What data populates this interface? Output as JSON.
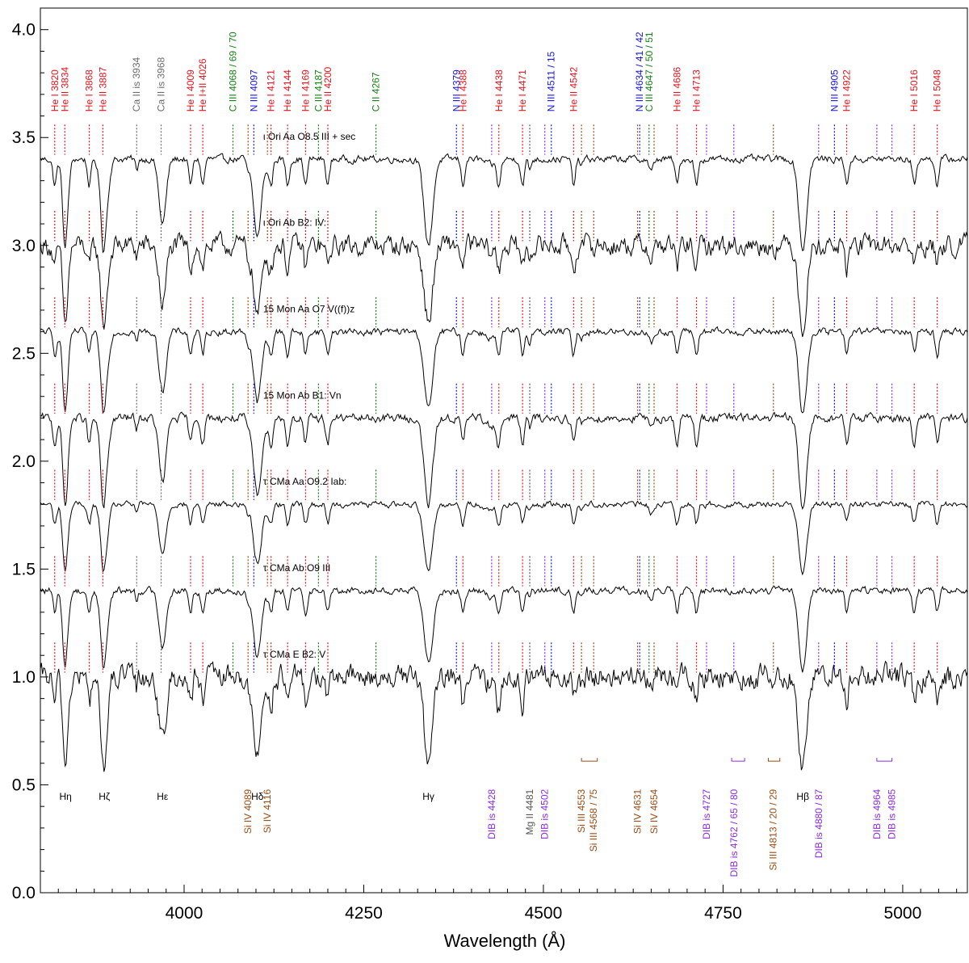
{
  "chart_data": {
    "type": "line",
    "title": "",
    "xlabel": "Wavelength (Å)",
    "ylabel": "",
    "xlim": [
      3800,
      5090
    ],
    "ylim": [
      0.0,
      4.1
    ],
    "x_ticks": [
      {
        "value": 4000,
        "label": "4000"
      },
      {
        "value": 4250,
        "label": "4250"
      },
      {
        "value": 4500,
        "label": "4500"
      },
      {
        "value": 4750,
        "label": "4750"
      },
      {
        "value": 5000,
        "label": "5000"
      }
    ],
    "y_ticks": [
      {
        "value": 0.0,
        "label": "0.0"
      },
      {
        "value": 0.5,
        "label": "0.5"
      },
      {
        "value": 1.0,
        "label": "1.0"
      },
      {
        "value": 1.5,
        "label": "1.5"
      },
      {
        "value": 2.0,
        "label": "2.0"
      },
      {
        "value": 2.5,
        "label": "2.5"
      },
      {
        "value": 3.0,
        "label": "3.0"
      },
      {
        "value": 3.5,
        "label": "3.5"
      },
      {
        "value": 4.0,
        "label": "4.0"
      }
    ],
    "colors": {
      "He": "#e8111a",
      "N": "#1515d8",
      "C": "#138013",
      "Ca": "#6b6b6b",
      "Si": "#9a4b12",
      "DIB": "#8a2be2",
      "Mg": "#555555",
      "H": "#000000",
      "spectrum": "#000000"
    },
    "series": [
      {
        "label": "ι Ori Aa   O8.5 III + sec",
        "offset": 3.4,
        "label_x": 4110,
        "noise": 0.012,
        "depth": 1.0
      },
      {
        "label": "ι Ori Ab   B2: IV:",
        "offset": 3.0,
        "label_x": 4110,
        "noise": 0.035,
        "depth": 0.9
      },
      {
        "label": "15 Mon Aa   O7 V((f))z",
        "offset": 2.6,
        "label_x": 4110,
        "noise": 0.012,
        "depth": 0.9
      },
      {
        "label": "15 Mon Ab   B1: Vn",
        "offset": 2.2,
        "label_x": 4110,
        "noise": 0.015,
        "depth": 1.0
      },
      {
        "label": "τ CMa Aa   O9.2 Iab:",
        "offset": 1.8,
        "label_x": 4110,
        "noise": 0.01,
        "depth": 0.75
      },
      {
        "label": "τ CMa Ab   O9 III",
        "offset": 1.4,
        "label_x": 4110,
        "noise": 0.012,
        "depth": 0.85
      },
      {
        "label": "τ CMa E   B2: V",
        "offset": 1.0,
        "label_x": 4110,
        "noise": 0.04,
        "depth": 1.0
      }
    ],
    "top_lines": [
      {
        "label": "He I 3820",
        "wl": 3820,
        "color": "He"
      },
      {
        "label": "He II 3834",
        "wl": 3834,
        "color": "He"
      },
      {
        "label": "He I 3868",
        "wl": 3868,
        "color": "He"
      },
      {
        "label": "He II 3887",
        "wl": 3887,
        "color": "He"
      },
      {
        "label": "Ca II is 3934",
        "wl": 3934,
        "color": "Ca"
      },
      {
        "label": "Ca II is 3968",
        "wl": 3968,
        "color": "Ca"
      },
      {
        "label": "He I 4009",
        "wl": 4009,
        "color": "He"
      },
      {
        "label": "He I+II 4026",
        "wl": 4026,
        "color": "He"
      },
      {
        "label": "C III 4068 / 69 / 70",
        "wl": 4068,
        "color": "C"
      },
      {
        "label": "N III 4097",
        "wl": 4097,
        "color": "N"
      },
      {
        "label": "He I 4121",
        "wl": 4121,
        "color": "He"
      },
      {
        "label": "He I 4144",
        "wl": 4144,
        "color": "He"
      },
      {
        "label": "He I 4169",
        "wl": 4169,
        "color": "He"
      },
      {
        "label": "C III 4187",
        "wl": 4187,
        "color": "C"
      },
      {
        "label": "He II 4200",
        "wl": 4200,
        "color": "He"
      },
      {
        "label": "C II 4267",
        "wl": 4267,
        "color": "C"
      },
      {
        "label": "N III 4379",
        "wl": 4379,
        "color": "N"
      },
      {
        "label": "He I 4388",
        "wl": 4388,
        "color": "He"
      },
      {
        "label": "He I 4438",
        "wl": 4438,
        "color": "He"
      },
      {
        "label": "He I 4471",
        "wl": 4471,
        "color": "He"
      },
      {
        "label": "N III 4511 / 15",
        "wl": 4511,
        "color": "N"
      },
      {
        "label": "He II 4542",
        "wl": 4542,
        "color": "He"
      },
      {
        "label": "N III 4634 / 41 / 42",
        "wl": 4634,
        "color": "N"
      },
      {
        "label": "C III 4647 / 50 / 51",
        "wl": 4647,
        "color": "C"
      },
      {
        "label": "He II 4686",
        "wl": 4686,
        "color": "He"
      },
      {
        "label": "He I 4713",
        "wl": 4713,
        "color": "He"
      },
      {
        "label": "N III 4905",
        "wl": 4905,
        "color": "N"
      },
      {
        "label": "He I 4922",
        "wl": 4922,
        "color": "He"
      },
      {
        "label": "He I 5016",
        "wl": 5016,
        "color": "He"
      },
      {
        "label": "He I 5048",
        "wl": 5048,
        "color": "He"
      }
    ],
    "bottom_lines": [
      {
        "label": "Si IV 4089",
        "wl": 4089,
        "color": "Si"
      },
      {
        "label": "Si IV 4116",
        "wl": 4116,
        "color": "Si"
      },
      {
        "label": "DIB is 4428",
        "wl": 4428,
        "color": "DIB"
      },
      {
        "label": "Mg II 4481",
        "wl": 4481,
        "color": "Mg"
      },
      {
        "label": "DIB is 4502",
        "wl": 4502,
        "color": "DIB"
      },
      {
        "label": "Si III 4553",
        "wl": 4553,
        "color": "Si"
      },
      {
        "label": "Si III 4568 / 75",
        "wl": 4570,
        "color": "Si"
      },
      {
        "label": "Si IV 4631",
        "wl": 4631,
        "color": "Si"
      },
      {
        "label": "Si IV 4654",
        "wl": 4654,
        "color": "Si"
      },
      {
        "label": "DIB is 4727",
        "wl": 4727,
        "color": "DIB"
      },
      {
        "label": "DIB is 4762 / 65 / 80",
        "wl": 4765,
        "color": "DIB"
      },
      {
        "label": "Si III 4813 / 20 / 29",
        "wl": 4820,
        "color": "Si"
      },
      {
        "label": "DIB is 4880 / 87",
        "wl": 4883,
        "color": "DIB"
      },
      {
        "label": "DIB is 4964",
        "wl": 4964,
        "color": "DIB"
      },
      {
        "label": "DIB is 4985",
        "wl": 4985,
        "color": "DIB"
      }
    ],
    "brackets": [
      {
        "from": 4553,
        "to": 4575,
        "color": "Si"
      },
      {
        "from": 4762,
        "to": 4780,
        "color": "DIB"
      },
      {
        "from": 4813,
        "to": 4829,
        "color": "Si"
      },
      {
        "from": 4964,
        "to": 4985,
        "color": "DIB"
      }
    ],
    "hydrogen_labels": [
      {
        "label": "Hη",
        "wl": 3835
      },
      {
        "label": "Hζ",
        "wl": 3889
      },
      {
        "label": "Hε",
        "wl": 3970
      },
      {
        "label": "Hδ",
        "wl": 4102
      },
      {
        "label": "Hγ",
        "wl": 4340
      },
      {
        "label": "Hβ",
        "wl": 4861
      }
    ],
    "grid": false,
    "legend": "none"
  }
}
